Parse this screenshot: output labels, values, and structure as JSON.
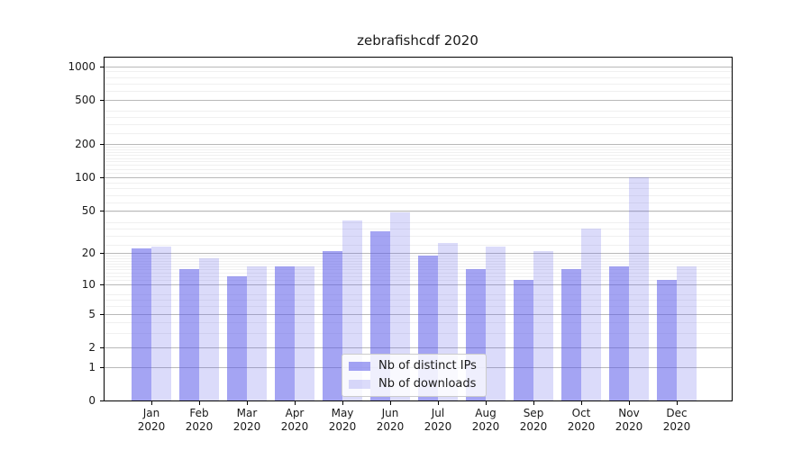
{
  "title": "zebrafishcdf 2020",
  "chart_data": {
    "type": "bar",
    "title": "zebrafishcdf 2020",
    "categories": [
      "Jan",
      "Feb",
      "Mar",
      "Apr",
      "May",
      "Jun",
      "Jul",
      "Aug",
      "Sep",
      "Oct",
      "Nov",
      "Dec"
    ],
    "year_label": "2020",
    "series": [
      {
        "name": "Nb of distinct IPs",
        "color": "rgba(90,90,233,0.55)",
        "values": [
          22,
          14,
          12,
          15,
          21,
          32,
          19,
          14,
          11,
          14,
          15,
          11
        ]
      },
      {
        "name": "Nb of downloads",
        "color": "rgba(90,90,233,0.22)",
        "values": [
          23,
          18,
          15,
          15,
          40,
          48,
          25,
          23,
          21,
          34,
          100,
          15
        ]
      }
    ],
    "yticks": [
      0,
      1,
      2,
      5,
      10,
      20,
      50,
      100,
      200,
      500,
      1000
    ],
    "ylim": [
      0,
      1300
    ],
    "scale": "log1p",
    "grid": "horizontal major+minor",
    "legend_position": "lower-center",
    "xlabel": "",
    "ylabel": ""
  },
  "colors": {
    "grid_major": "#b9b9b9",
    "grid_minor": "#f0f0f0",
    "axis": "#000000",
    "text": "#1a1a1a"
  }
}
